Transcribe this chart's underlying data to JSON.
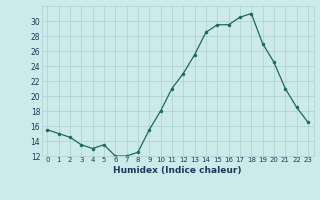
{
  "x": [
    0,
    1,
    2,
    3,
    4,
    5,
    6,
    7,
    8,
    9,
    10,
    11,
    12,
    13,
    14,
    15,
    16,
    17,
    18,
    19,
    20,
    21,
    22,
    23
  ],
  "y": [
    15.5,
    15.0,
    14.5,
    13.5,
    13.0,
    13.5,
    12.0,
    12.0,
    12.5,
    15.5,
    18.0,
    21.0,
    23.0,
    25.5,
    28.5,
    29.5,
    29.5,
    30.5,
    31.0,
    27.0,
    24.5,
    21.0,
    18.5,
    16.5
  ],
  "xlabel": "Humidex (Indice chaleur)",
  "ylim": [
    12,
    32
  ],
  "xlim": [
    -0.5,
    23.5
  ],
  "yticks": [
    12,
    14,
    16,
    18,
    20,
    22,
    24,
    26,
    28,
    30
  ],
  "xticks": [
    0,
    1,
    2,
    3,
    4,
    5,
    6,
    7,
    8,
    9,
    10,
    11,
    12,
    13,
    14,
    15,
    16,
    17,
    18,
    19,
    20,
    21,
    22,
    23
  ],
  "line_color": "#1a6b5a",
  "marker_color": "#1a6b5a",
  "bg_color": "#cceaea",
  "grid_color": "#aad0d0",
  "tick_label_color": "#1a3a5a",
  "xlabel_color": "#1a3a5a"
}
